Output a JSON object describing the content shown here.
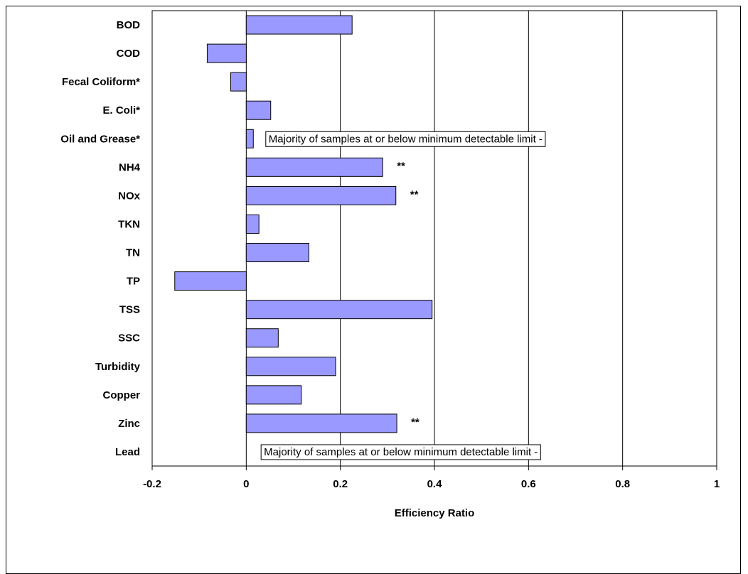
{
  "chart_data": {
    "type": "bar",
    "orientation": "horizontal",
    "categories": [
      "BOD",
      "COD",
      "Fecal Coliform*",
      "E. Coli*",
      "Oil and Grease*",
      "NH4",
      "NOx",
      "TKN",
      "TN",
      "TP",
      "TSS",
      "SSC",
      "Turbidity",
      "Copper",
      "Zinc",
      "Lead"
    ],
    "values": [
      0.225,
      -0.083,
      -0.033,
      0.052,
      0.015,
      0.29,
      0.318,
      0.027,
      0.133,
      -0.152,
      0.395,
      0.068,
      0.19,
      0.117,
      0.32,
      null
    ],
    "xlabel": "Efficiency Ratio",
    "xlim": [
      -0.2,
      1
    ],
    "xticks": [
      "-0.2",
      "0",
      "0.2",
      "0.4",
      "0.6",
      "0.8",
      "1"
    ],
    "grid": "vertical major gridlines",
    "bar_color": "#9999ff",
    "annotations": [
      {
        "category": "Oil and Grease*",
        "text": "Majority of samples at or below minimum detectable limit -",
        "x": 0.04
      },
      {
        "category": "Lead",
        "text": "Majority of samples at or below minimum detectable limit -",
        "x": 0.03
      }
    ],
    "significance_marks": [
      {
        "category": "NH4",
        "text": "**"
      },
      {
        "category": "NOx",
        "text": "**"
      },
      {
        "category": "Zinc",
        "text": "**"
      }
    ]
  }
}
